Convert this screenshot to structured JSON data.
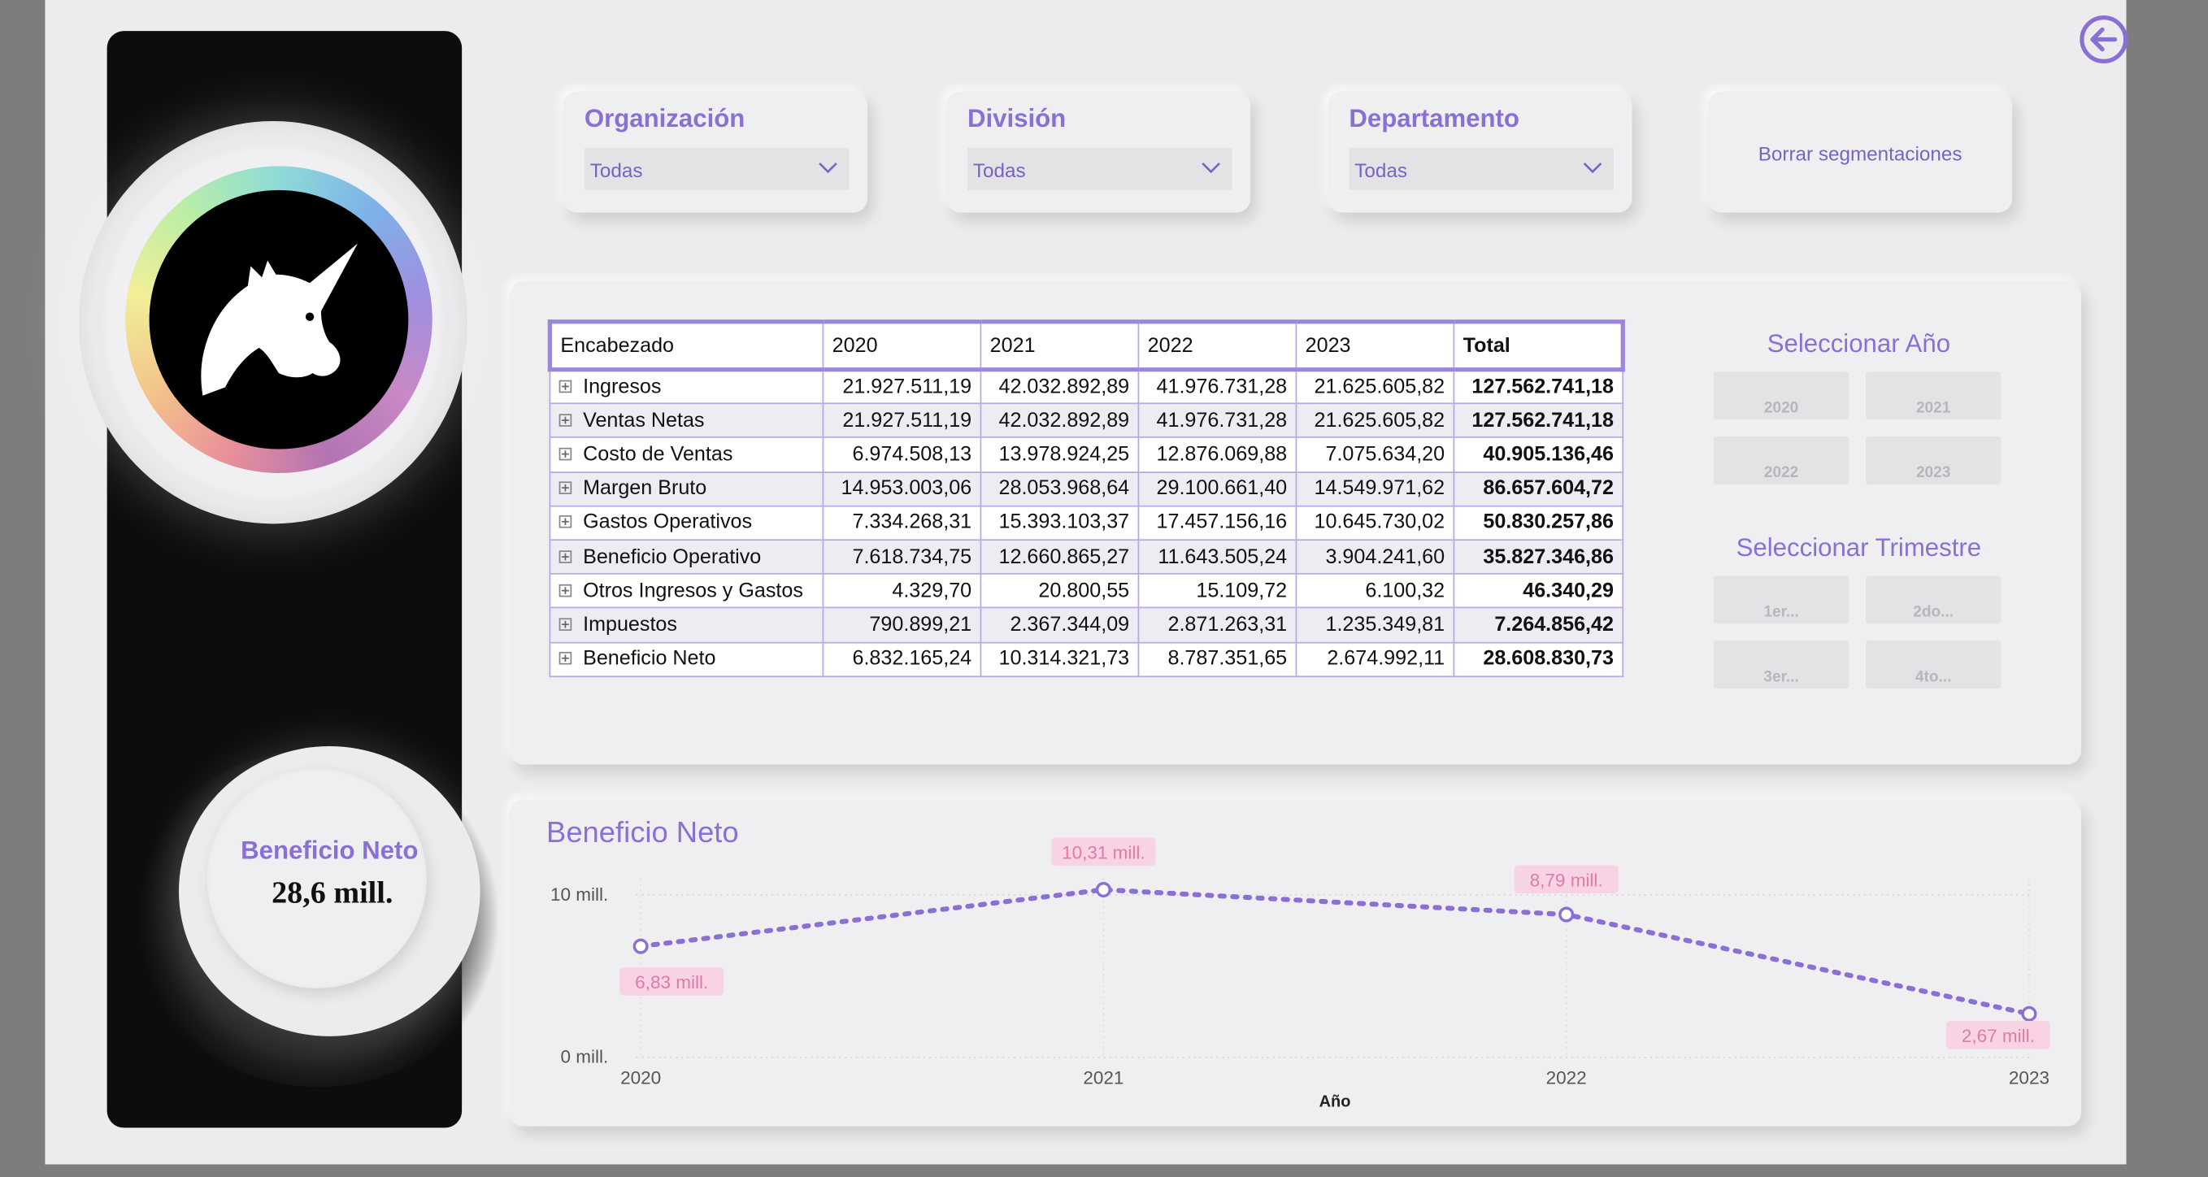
{
  "kpi": {
    "label": "Beneficio Neto",
    "value": "28,6 mill."
  },
  "slicers": [
    {
      "title": "Organización",
      "value": "Todas"
    },
    {
      "title": "División",
      "value": "Todas"
    },
    {
      "title": "Departamento",
      "value": "Todas"
    }
  ],
  "clear_label": "Borrar segmentaciones",
  "matrix": {
    "headers": [
      "Encabezado",
      "2020",
      "2021",
      "2022",
      "2023",
      "Total"
    ],
    "rows": [
      {
        "label": "Ingresos",
        "v2020": "21.927.511,19",
        "v2021": "42.032.892,89",
        "v2022": "41.976.731,28",
        "v2023": "21.625.605,82",
        "total": "127.562.741,18"
      },
      {
        "label": "Ventas Netas",
        "v2020": "21.927.511,19",
        "v2021": "42.032.892,89",
        "v2022": "41.976.731,28",
        "v2023": "21.625.605,82",
        "total": "127.562.741,18"
      },
      {
        "label": "Costo de Ventas",
        "v2020": "6.974.508,13",
        "v2021": "13.978.924,25",
        "v2022": "12.876.069,88",
        "v2023": "7.075.634,20",
        "total": "40.905.136,46"
      },
      {
        "label": "Margen Bruto",
        "v2020": "14.953.003,06",
        "v2021": "28.053.968,64",
        "v2022": "29.100.661,40",
        "v2023": "14.549.971,62",
        "total": "86.657.604,72"
      },
      {
        "label": "Gastos Operativos",
        "v2020": "7.334.268,31",
        "v2021": "15.393.103,37",
        "v2022": "17.457.156,16",
        "v2023": "10.645.730,02",
        "total": "50.830.257,86"
      },
      {
        "label": "Beneficio Operativo",
        "v2020": "7.618.734,75",
        "v2021": "12.660.865,27",
        "v2022": "11.643.505,24",
        "v2023": "3.904.241,60",
        "total": "35.827.346,86"
      },
      {
        "label": "Otros Ingresos y Gastos",
        "v2020": "4.329,70",
        "v2021": "20.800,55",
        "v2022": "15.109,72",
        "v2023": "6.100,32",
        "total": "46.340,29"
      },
      {
        "label": "Impuestos",
        "v2020": "790.899,21",
        "v2021": "2.367.344,09",
        "v2022": "2.871.263,31",
        "v2023": "1.235.349,81",
        "total": "7.264.856,42"
      },
      {
        "label": "Beneficio Neto",
        "v2020": "6.832.165,24",
        "v2021": "10.314.321,73",
        "v2022": "8.787.351,65",
        "v2023": "2.674.992,11",
        "total": "28.608.830,73"
      }
    ]
  },
  "year_selector": {
    "title": "Seleccionar Año",
    "options": [
      "2020",
      "2021",
      "2022",
      "2023"
    ]
  },
  "quarter_selector": {
    "title": "Seleccionar Trimestre",
    "options": [
      "1er...",
      "2do...",
      "3er...",
      "4to..."
    ]
  },
  "chart_data": {
    "type": "line",
    "title": "Beneficio Neto",
    "xlabel": "Año",
    "ylabel": "",
    "categories": [
      "2020",
      "2021",
      "2022",
      "2023"
    ],
    "values": [
      6832165.24,
      10314321.73,
      8787351.65,
      2674992.11
    ],
    "data_labels": [
      "6,83 mill.",
      "10,31 mill.",
      "8,79 mill.",
      "2,67 mill."
    ],
    "y_ticks": [
      {
        "value": 0,
        "label": "0 mill."
      },
      {
        "value": 10000000,
        "label": "10 mill."
      }
    ],
    "ylim": [
      0,
      11000000
    ],
    "colors": {
      "line": "#8a6fd4",
      "label_bg": "#f8d3e3",
      "label_text": "#e07aa8"
    }
  },
  "colors": {
    "accent": "#8a6fd4",
    "panel": "#0d0d0d",
    "background": "#ececee"
  }
}
